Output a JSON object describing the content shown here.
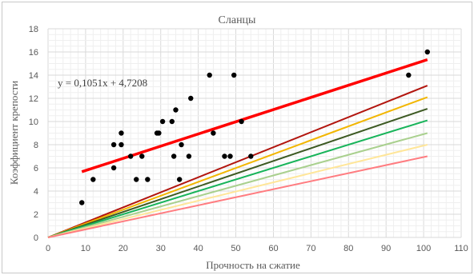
{
  "chart_data": {
    "type": "scatter",
    "title": "Сланцы",
    "xlabel": "Прочность на сжатие",
    "ylabel": "Коэффициент крепости",
    "xlim": [
      0,
      110
    ],
    "ylim": [
      0,
      18
    ],
    "x_ticks": [
      0,
      10,
      20,
      30,
      40,
      50,
      60,
      70,
      80,
      90,
      100,
      110
    ],
    "y_ticks": [
      0,
      2,
      4,
      6,
      8,
      10,
      12,
      14,
      16,
      18
    ],
    "grid": "major and minor",
    "legend": "none",
    "points": [
      [
        9,
        3
      ],
      [
        12,
        5
      ],
      [
        17.5,
        8
      ],
      [
        17.5,
        6
      ],
      [
        19.5,
        9
      ],
      [
        19.5,
        8
      ],
      [
        22,
        7
      ],
      [
        23.5,
        5
      ],
      [
        25,
        7
      ],
      [
        26.5,
        5
      ],
      [
        29,
        9
      ],
      [
        29.5,
        9
      ],
      [
        30.5,
        10
      ],
      [
        33,
        10
      ],
      [
        33.5,
        7
      ],
      [
        34,
        11
      ],
      [
        35,
        5
      ],
      [
        35.5,
        8
      ],
      [
        37.5,
        7
      ],
      [
        38,
        12
      ],
      [
        43,
        14
      ],
      [
        44,
        9
      ],
      [
        47,
        7
      ],
      [
        48.5,
        7
      ],
      [
        49.5,
        14
      ],
      [
        51.5,
        10
      ],
      [
        54,
        7
      ],
      [
        96,
        14
      ],
      [
        101,
        16
      ]
    ],
    "trendline": {
      "label": "y = 0,1051x + 4,7208",
      "slope": 0.1051,
      "intercept": 4.7208,
      "x_range": [
        9,
        101
      ],
      "color": "#ff0000"
    },
    "reference_lines": [
      {
        "end": [
          101,
          13.1
        ],
        "color": "#b2150e"
      },
      {
        "end": [
          101,
          12.1
        ],
        "color": "#f2b600"
      },
      {
        "end": [
          101,
          11.1
        ],
        "color": "#3d5a23"
      },
      {
        "end": [
          101,
          10.1
        ],
        "color": "#18b45a"
      },
      {
        "end": [
          101,
          9.0
        ],
        "color": "#a9d08e"
      },
      {
        "end": [
          101,
          8.0
        ],
        "color": "#ffe699"
      },
      {
        "end": [
          101,
          7.0
        ],
        "color": "#ff7c80"
      }
    ]
  }
}
